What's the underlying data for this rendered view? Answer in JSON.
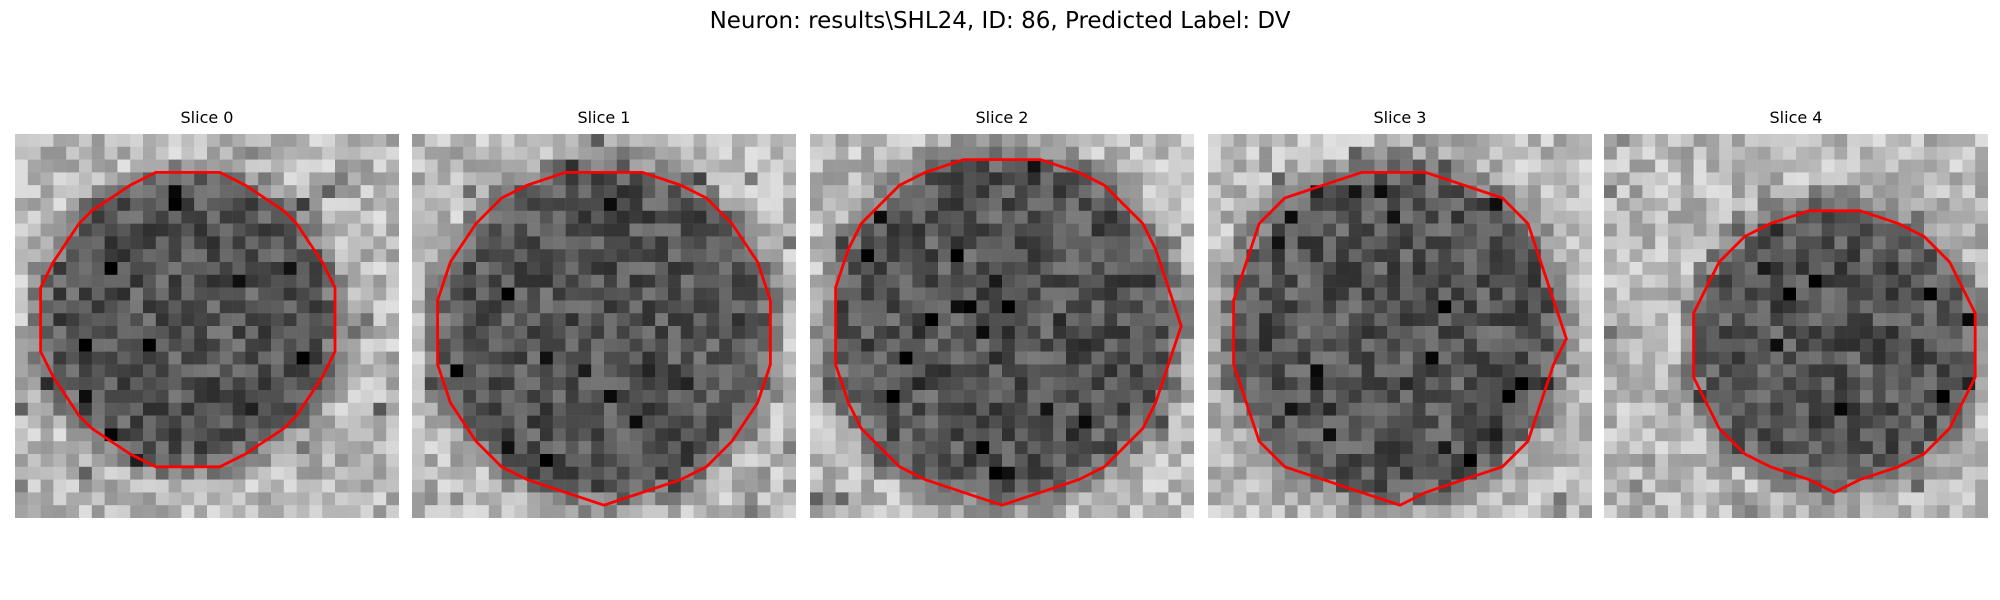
{
  "figure": {
    "title": "Neuron: results\\SHL24, ID: 86, Predicted Label: DV"
  },
  "panels": [
    {
      "title": "Slice 0"
    },
    {
      "title": "Slice 1"
    },
    {
      "title": "Slice 2"
    },
    {
      "title": "Slice 3"
    },
    {
      "title": "Slice 4"
    }
  ],
  "colors": {
    "contour": "#ff0000",
    "background": "#ffffff"
  }
}
